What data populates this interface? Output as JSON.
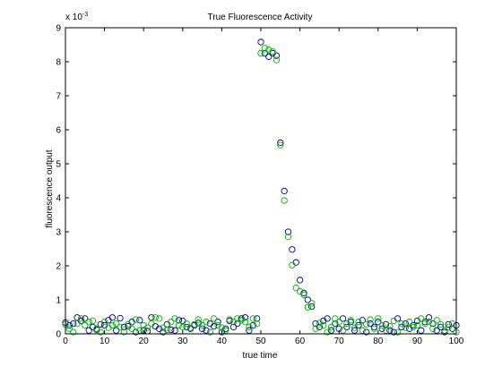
{
  "chart_data": {
    "type": "scatter",
    "title": "True Fluorescence Activity",
    "xlabel": "true time",
    "ylabel": "fluorescence output",
    "y_exponent_label": "x 10",
    "y_exponent_power": "-3",
    "xlim": [
      0,
      100
    ],
    "ylim": [
      0,
      9
    ],
    "x_ticks": [
      0,
      10,
      20,
      30,
      40,
      50,
      60,
      70,
      80,
      90,
      100
    ],
    "y_ticks": [
      0,
      1,
      2,
      3,
      4,
      5,
      6,
      7,
      8,
      9
    ],
    "grid": false,
    "marker": "open-circle",
    "series": [
      {
        "color": "#00007f",
        "x": [
          0,
          1,
          2,
          3,
          4,
          5,
          6,
          7,
          8,
          9,
          10,
          11,
          12,
          13,
          14,
          15,
          16,
          17,
          18,
          19,
          20,
          21,
          22,
          23,
          24,
          25,
          26,
          27,
          28,
          29,
          30,
          31,
          32,
          33,
          34,
          35,
          36,
          37,
          38,
          39,
          40,
          41,
          42,
          43,
          44,
          45,
          46,
          47,
          48,
          49,
          50,
          51,
          52,
          53,
          54,
          55,
          56,
          57,
          58,
          59,
          60,
          61,
          62,
          63,
          64,
          65,
          66,
          67,
          68,
          69,
          70,
          71,
          72,
          73,
          74,
          75,
          76,
          77,
          78,
          79,
          80,
          81,
          82,
          83,
          84,
          85,
          86,
          87,
          88,
          89,
          90,
          91,
          92,
          93,
          94,
          95,
          96,
          97,
          98,
          99,
          100
        ],
        "y": [
          0.33,
          0.25,
          0.3,
          0.48,
          0.38,
          0.45,
          0.1,
          0.2,
          0.12,
          0.28,
          0.25,
          0.4,
          0.48,
          0.1,
          0.46,
          0.2,
          0.22,
          0.35,
          0.05,
          0.4,
          0.1,
          0.08,
          0.48,
          0.22,
          0.15,
          0.05,
          0.28,
          0.12,
          0.1,
          0.4,
          0.38,
          0.2,
          0.15,
          0.25,
          0.32,
          0.15,
          0.1,
          0.3,
          0.22,
          0.35,
          0.05,
          0.15,
          0.38,
          0.2,
          0.3,
          0.45,
          0.48,
          0.1,
          0.25,
          0.45,
          8.58,
          8.25,
          8.15,
          8.25,
          8.18,
          5.62,
          4.2,
          3.0,
          2.48,
          2.1,
          1.58,
          1.2,
          1.0,
          0.8,
          0.3,
          0.2,
          0.38,
          0.45,
          0.1,
          0.3,
          0.15,
          0.45,
          0.2,
          0.35,
          0.1,
          0.25,
          0.4,
          0.05,
          0.3,
          0.2,
          0.35,
          0.15,
          0.28,
          0.1,
          0.05,
          0.45,
          0.2,
          0.3,
          0.15,
          0.25,
          0.38,
          0.1,
          0.35,
          0.48,
          0.3,
          0.1,
          0.2,
          0.05,
          0.28,
          0.15,
          0.25
        ]
      },
      {
        "color": "#00b000",
        "x": [
          0,
          1,
          2,
          3,
          4,
          5,
          6,
          7,
          8,
          9,
          10,
          11,
          12,
          13,
          14,
          15,
          16,
          17,
          18,
          19,
          20,
          21,
          22,
          23,
          24,
          25,
          26,
          27,
          28,
          29,
          30,
          31,
          32,
          33,
          34,
          35,
          36,
          37,
          38,
          39,
          40,
          41,
          42,
          43,
          44,
          45,
          46,
          47,
          48,
          49,
          50,
          51,
          52,
          53,
          54,
          55,
          56,
          57,
          58,
          59,
          60,
          61,
          62,
          63,
          64,
          65,
          66,
          67,
          68,
          69,
          70,
          71,
          72,
          73,
          74,
          75,
          76,
          77,
          78,
          79,
          80,
          81,
          82,
          83,
          84,
          85,
          86,
          87,
          88,
          89,
          90,
          91,
          92,
          93,
          94,
          95,
          96,
          97,
          98,
          99,
          100
        ],
        "y": [
          0.28,
          0.15,
          0.05,
          0.3,
          0.45,
          0.25,
          0.35,
          0.38,
          0.15,
          0.05,
          0.35,
          0.18,
          0.25,
          0.3,
          0.2,
          0.05,
          0.28,
          0.15,
          0.42,
          0.1,
          0.25,
          0.18,
          0.3,
          0.48,
          0.45,
          0.18,
          0.12,
          0.35,
          0.45,
          0.25,
          0.2,
          0.3,
          0.18,
          0.28,
          0.42,
          0.25,
          0.35,
          0.05,
          0.45,
          0.25,
          0.18,
          0.1,
          0.42,
          0.35,
          0.45,
          0.4,
          0.35,
          0.2,
          0.45,
          0.3,
          8.25,
          8.4,
          8.35,
          8.3,
          8.05,
          5.55,
          3.92,
          2.85,
          2.02,
          1.35,
          1.25,
          1.15,
          0.78,
          0.9,
          0.15,
          0.32,
          0.25,
          0.05,
          0.2,
          0.45,
          0.35,
          0.1,
          0.3,
          0.4,
          0.18,
          0.35,
          0.1,
          0.28,
          0.42,
          0.15,
          0.45,
          0.25,
          0.1,
          0.22,
          0.38,
          0.05,
          0.3,
          0.18,
          0.35,
          0.2,
          0.25,
          0.45,
          0.3,
          0.35,
          0.15,
          0.4,
          0.28,
          0.1,
          0.2,
          0.3,
          0.05
        ]
      }
    ]
  }
}
